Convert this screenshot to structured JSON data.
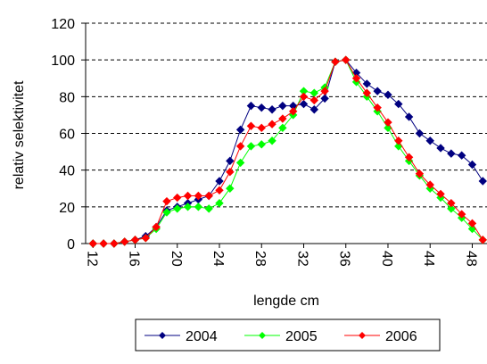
{
  "chart_data": {
    "type": "line",
    "x_label": "lengde cm",
    "y_label": "relativ selektivitet",
    "x": [
      12,
      13,
      14,
      15,
      16,
      17,
      18,
      19,
      20,
      21,
      22,
      23,
      24,
      25,
      26,
      27,
      28,
      29,
      30,
      31,
      32,
      33,
      34,
      35,
      36,
      37,
      38,
      39,
      40,
      41,
      42,
      43,
      44,
      45,
      46,
      47,
      48,
      49
    ],
    "series": [
      {
        "name": "2004",
        "color": "#000080",
        "values": [
          0,
          0,
          0,
          1,
          2,
          4,
          9,
          18,
          20,
          22,
          24,
          26,
          34,
          45,
          62,
          75,
          74,
          73,
          75,
          75,
          76,
          73,
          79,
          99,
          100,
          93,
          87,
          83,
          81,
          76,
          69,
          60,
          56,
          52,
          49,
          48,
          43,
          34
        ]
      },
      {
        "name": "2005",
        "color": "#00ff00",
        "values": [
          0,
          0,
          0,
          1,
          2,
          3,
          8,
          17,
          19,
          20,
          20,
          19,
          22,
          30,
          44,
          53,
          54,
          56,
          63,
          70,
          83,
          82,
          85,
          99,
          100,
          88,
          80,
          72,
          63,
          53,
          45,
          37,
          30,
          25,
          19,
          14,
          8,
          2
        ]
      },
      {
        "name": "2006",
        "color": "#ff0000",
        "values": [
          0,
          0,
          0,
          1,
          2,
          3,
          9,
          23,
          25,
          26,
          26,
          26,
          29,
          39,
          53,
          64,
          63,
          65,
          68,
          72,
          80,
          78,
          83,
          99,
          100,
          90,
          82,
          74,
          66,
          56,
          47,
          38,
          32,
          27,
          22,
          16,
          11,
          2
        ]
      }
    ],
    "xlim": [
      11.3,
      49.4
    ],
    "xticks": [
      12,
      16,
      20,
      24,
      28,
      32,
      36,
      40,
      44,
      48
    ],
    "ylim": [
      0,
      120
    ],
    "yticks": [
      0,
      20,
      40,
      60,
      80,
      100,
      120
    ],
    "grid": true,
    "legend": "bottom"
  }
}
